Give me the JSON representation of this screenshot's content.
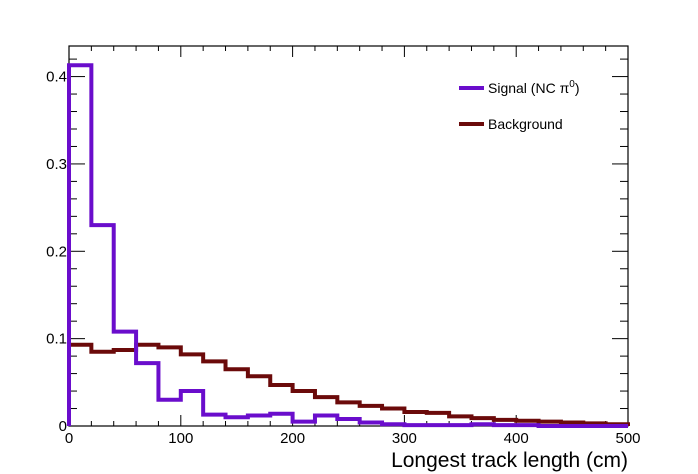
{
  "chart_data": {
    "type": "histogram",
    "xlabel": "Longest track length (cm)",
    "ylabel": "",
    "xlim": [
      0,
      500
    ],
    "ylim": [
      0,
      0.435
    ],
    "x_ticks": [
      0,
      100,
      200,
      300,
      400,
      500
    ],
    "y_ticks": [
      0,
      0.1,
      0.2,
      0.3,
      0.4
    ],
    "y_tick_labels": [
      "0",
      "0.1",
      "0.2",
      "0.3",
      "0.4"
    ],
    "bin_edges": [
      0,
      20,
      40,
      60,
      80,
      100,
      120,
      140,
      160,
      180,
      200,
      220,
      240,
      260,
      280,
      300,
      320,
      340,
      360,
      380,
      400,
      420,
      440,
      460,
      480,
      500
    ],
    "legend_position": "top-right",
    "grid": false,
    "series": [
      {
        "name": "Signal (NC π⁰)",
        "legend_main": "Signal (NC π",
        "legend_sup": "0",
        "legend_tail": ")",
        "color": "#6a0dcc",
        "values": [
          0.413,
          0.23,
          0.108,
          0.072,
          0.03,
          0.04,
          0.013,
          0.01,
          0.012,
          0.014,
          0.005,
          0.012,
          0.008,
          0.004,
          0.002,
          0.001,
          0.001,
          0.001,
          0.002,
          0.001,
          0.001,
          0.0,
          0.0,
          0.0,
          0.0
        ]
      },
      {
        "name": "Background",
        "legend_main": "Background",
        "legend_sup": "",
        "legend_tail": "",
        "color": "#6b0a0a",
        "values": [
          0.093,
          0.085,
          0.087,
          0.093,
          0.09,
          0.082,
          0.074,
          0.065,
          0.057,
          0.047,
          0.04,
          0.033,
          0.027,
          0.023,
          0.02,
          0.016,
          0.015,
          0.011,
          0.009,
          0.007,
          0.006,
          0.005,
          0.004,
          0.003,
          0.002
        ]
      }
    ]
  }
}
